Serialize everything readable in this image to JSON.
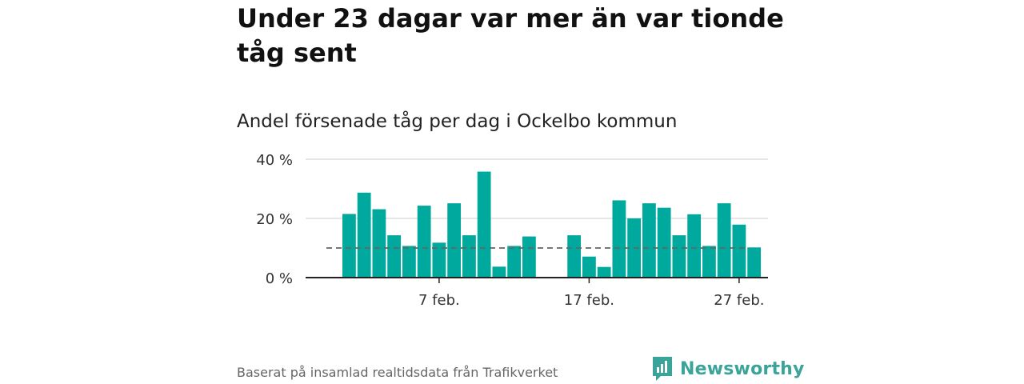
{
  "header": {
    "title": "Under 23 dagar var mer än var tionde tåg sent",
    "subtitle": "Andel försenade tåg per dag i Ockelbo kommun"
  },
  "footer": {
    "source": "Baserat på insamlad realtidsdata från Trafikverket",
    "brand": "Newsworthy"
  },
  "colors": {
    "bar": "#00a99d",
    "reference_line": "#666666",
    "grid": "#dddddd",
    "axis": "#222222",
    "brand": "#3aa39a"
  },
  "chart_data": {
    "type": "bar",
    "x_start_day": 1,
    "x_month_label": "feb.",
    "categories": [
      "1 feb.",
      "2 feb.",
      "3 feb.",
      "4 feb.",
      "5 feb.",
      "6 feb.",
      "7 feb.",
      "8 feb.",
      "9 feb.",
      "10 feb.",
      "11 feb.",
      "12 feb.",
      "13 feb.",
      "14 feb.",
      "15 feb.",
      "16 feb.",
      "17 feb.",
      "18 feb.",
      "19 feb.",
      "20 feb.",
      "21 feb.",
      "22 feb.",
      "23 feb.",
      "24 feb.",
      "25 feb.",
      "26 feb.",
      "27 feb.",
      "28 feb."
    ],
    "values": [
      21.5,
      28.7,
      23.1,
      14.3,
      10.7,
      24.3,
      11.8,
      25.1,
      14.3,
      35.8,
      3.7,
      10.7,
      13.9,
      null,
      null,
      14.3,
      7.1,
      3.6,
      26.1,
      20.0,
      25.1,
      23.6,
      14.3,
      21.4,
      10.7,
      25.1,
      17.9,
      10.2
    ],
    "reference_value": 10,
    "ylim": [
      0,
      40
    ],
    "yticks": [
      0,
      20,
      40
    ],
    "ytick_labels": [
      "0 %",
      "20 %",
      "40 %"
    ],
    "xticks": [
      7,
      17,
      27
    ],
    "xtick_labels": [
      "7 feb.",
      "17 feb.",
      "27 feb."
    ],
    "xlabel": "",
    "ylabel": "",
    "grid": true
  }
}
